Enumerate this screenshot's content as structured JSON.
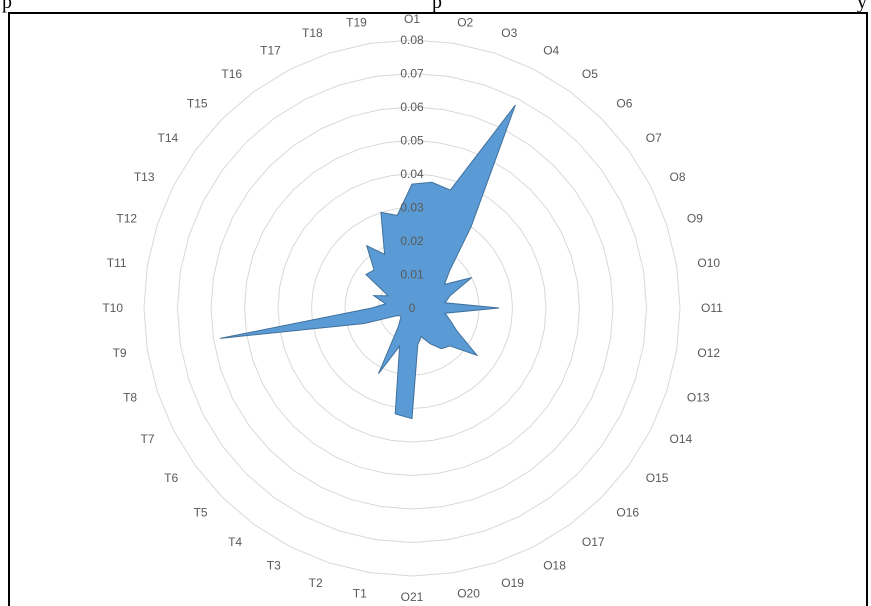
{
  "doc_fragment": {
    "left_text": "p",
    "mid_text": "p",
    "right_text": "y"
  },
  "chart_data": {
    "type": "radar",
    "title": "",
    "categories": [
      "O1",
      "O2",
      "O3",
      "O4",
      "O5",
      "O6",
      "O7",
      "O8",
      "O9",
      "O10",
      "O11",
      "O12",
      "O13",
      "O14",
      "O15",
      "O16",
      "O17",
      "O18",
      "O19",
      "O20",
      "O21",
      "T1",
      "T2",
      "T3",
      "T4",
      "T5",
      "T6",
      "T7",
      "T8",
      "T9",
      "T10",
      "T11",
      "T12",
      "T13",
      "T14",
      "T15",
      "T16",
      "T17",
      "T18",
      "T19"
    ],
    "series": [
      {
        "values": [
          0.037,
          0.038,
          0.037,
          0.068,
          0.03,
          0.016,
          0.012,
          0.02,
          0.012,
          0.01,
          0.026,
          0.01,
          0.012,
          0.015,
          0.024,
          0.016,
          0.015,
          0.012,
          0.009,
          0.011,
          0.033,
          0.032,
          0.012,
          0.022,
          0.007,
          0.005,
          0.004,
          0.005,
          0.015,
          0.058,
          0.012,
          0.008,
          0.012,
          0.008,
          0.017,
          0.016,
          0.023,
          0.018,
          0.03,
          0.028
        ],
        "color": "#5b9bd5"
      }
    ],
    "rlim": [
      0,
      0.08
    ],
    "ticks": [
      "0",
      "0.01",
      "0.02",
      "0.03",
      "0.04",
      "0.05",
      "0.06",
      "0.07",
      "0.08"
    ],
    "grid": true,
    "grid_color": "#d9d9d9",
    "label_color": "#595959"
  }
}
